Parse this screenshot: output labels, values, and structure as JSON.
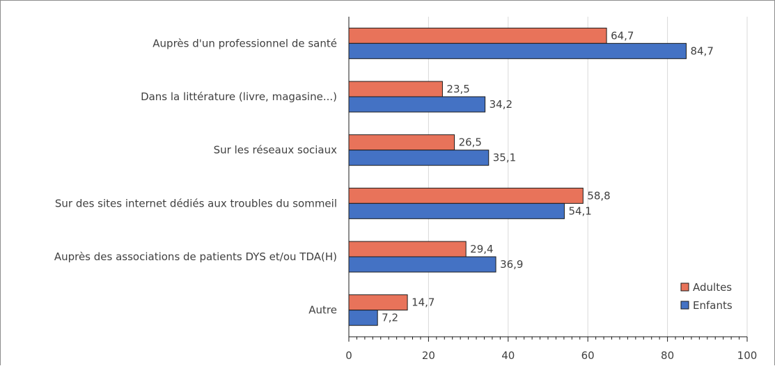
{
  "chart_data": {
    "type": "bar",
    "orientation": "horizontal",
    "categories": [
      "Auprès d'un professionnel de santé",
      "Dans la littérature (livre, magasine...)",
      "Sur les réseaux sociaux",
      "Sur des sites internet dédiés aux troubles du sommeil",
      "Auprès des associations de patients DYS et/ou TDA(H)",
      "Autre"
    ],
    "series": [
      {
        "name": "Adultes",
        "color": "#e8735a",
        "values": [
          64.7,
          23.5,
          26.5,
          58.8,
          29.4,
          14.7
        ],
        "labels": [
          "64,7",
          "23,5",
          "26,5",
          "58,8",
          "29,4",
          "14,7"
        ]
      },
      {
        "name": "Enfants",
        "color": "#4472c4",
        "values": [
          84.7,
          34.2,
          35.1,
          54.1,
          36.9,
          7.2
        ],
        "labels": [
          "84,7",
          "34,2",
          "35,1",
          "54,1",
          "36,9",
          "7,2"
        ]
      }
    ],
    "xlim": [
      0,
      100
    ],
    "xticks": [
      0,
      20,
      40,
      60,
      80,
      100
    ],
    "grid": true,
    "legend_position": "bottom-right"
  }
}
